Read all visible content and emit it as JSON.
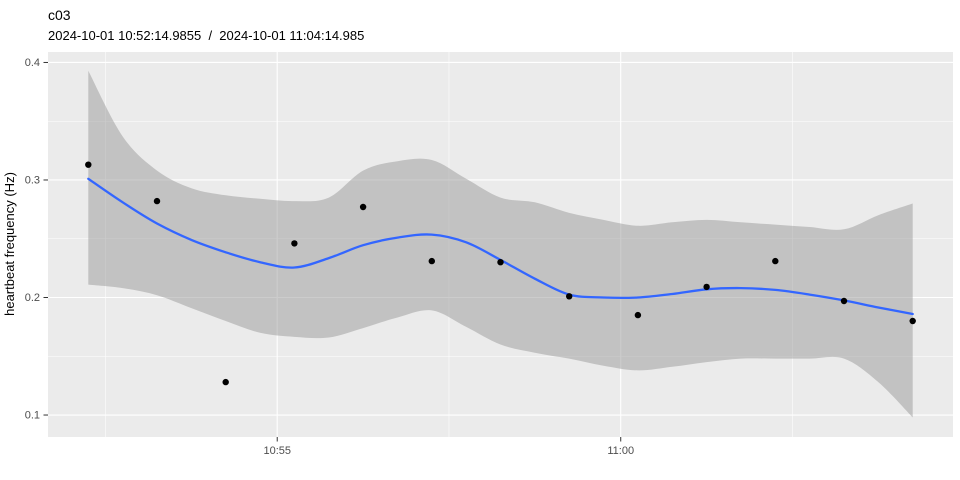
{
  "header": {
    "title": "c03",
    "subtitle": "2024-10-01 10:52:14.9855  /  2024-10-01 11:04:14.985"
  },
  "chart_data": {
    "type": "scatter",
    "title": "c03",
    "subtitle": "2024-10-01 10:52:14.9855  /  2024-10-01 11:04:14.985",
    "xlabel": "",
    "ylabel": "heartbeat frequency (Hz)",
    "legend": "none",
    "grid": "white major and minor gridlines on grey panel (ggplot style)",
    "x_origin_time": "10:52:15",
    "x_domain_seconds": [
      -35.2,
      755.2
    ],
    "y_domain": [
      0.0813,
      0.4089
    ],
    "x_ticks": {
      "labels": [
        "10:55",
        "11:00"
      ],
      "seconds": [
        165,
        465
      ],
      "minor_seconds": [
        15,
        315,
        615
      ]
    },
    "y_ticks": {
      "labels": [
        "0.1",
        "0.2",
        "0.3",
        "0.4"
      ],
      "values": [
        0.1,
        0.2,
        0.3,
        0.4
      ],
      "minor_values": [
        0.15,
        0.25,
        0.35
      ]
    },
    "points": {
      "t_seconds": [
        0,
        60,
        120,
        180,
        240,
        300,
        360,
        420,
        480,
        540,
        600,
        660,
        720
      ],
      "time_labels": [
        "10:52:15",
        "10:53:15",
        "10:54:15",
        "10:55:15",
        "10:56:15",
        "10:57:15",
        "10:58:15",
        "10:59:15",
        "11:00:15",
        "11:01:15",
        "11:02:15",
        "11:03:15",
        "11:04:15"
      ],
      "values_hz": [
        0.313,
        0.282,
        0.128,
        0.246,
        0.277,
        0.231,
        0.23,
        0.201,
        0.185,
        0.209,
        0.231,
        0.197,
        0.18
      ]
    },
    "smooth_line": {
      "t_seconds": [
        0,
        30,
        60,
        90,
        120,
        150,
        180,
        210,
        240,
        270,
        300,
        330,
        360,
        390,
        420,
        450,
        480,
        510,
        540,
        570,
        600,
        630,
        660,
        690,
        720
      ],
      "values_hz": [
        0.301,
        0.281,
        0.263,
        0.249,
        0.2385,
        0.23,
        0.2255,
        0.2335,
        0.2445,
        0.251,
        0.2535,
        0.247,
        0.232,
        0.216,
        0.2025,
        0.2,
        0.2,
        0.203,
        0.207,
        0.208,
        0.2065,
        0.2025,
        0.1975,
        0.1915,
        0.186
      ]
    },
    "confidence_ribbon": {
      "t_seconds": [
        0,
        30,
        60,
        90,
        120,
        150,
        180,
        210,
        240,
        270,
        300,
        330,
        360,
        390,
        420,
        450,
        480,
        510,
        540,
        570,
        600,
        630,
        660,
        690,
        720
      ],
      "upper_hz": [
        0.393,
        0.337,
        0.308,
        0.293,
        0.287,
        0.284,
        0.282,
        0.285,
        0.308,
        0.316,
        0.317,
        0.301,
        0.285,
        0.281,
        0.272,
        0.266,
        0.261,
        0.264,
        0.266,
        0.264,
        0.262,
        0.26,
        0.258,
        0.27,
        0.28
      ],
      "lower_hz": [
        0.211,
        0.208,
        0.202,
        0.191,
        0.18,
        0.17,
        0.1665,
        0.166,
        0.174,
        0.183,
        0.189,
        0.175,
        0.16,
        0.153,
        0.148,
        0.142,
        0.138,
        0.141,
        0.145,
        0.148,
        0.148,
        0.148,
        0.148,
        0.128,
        0.098
      ]
    },
    "colors": {
      "panel_background": "#ebebeb",
      "grid": "#ffffff",
      "ribbon_fill": "#999999",
      "ribbon_opacity": 0.5,
      "smooth_line": "#3366ff",
      "point": "#000000",
      "tick_mark": "#333333",
      "tick_label": "#4d4d4d",
      "title_text": "#000000"
    }
  }
}
